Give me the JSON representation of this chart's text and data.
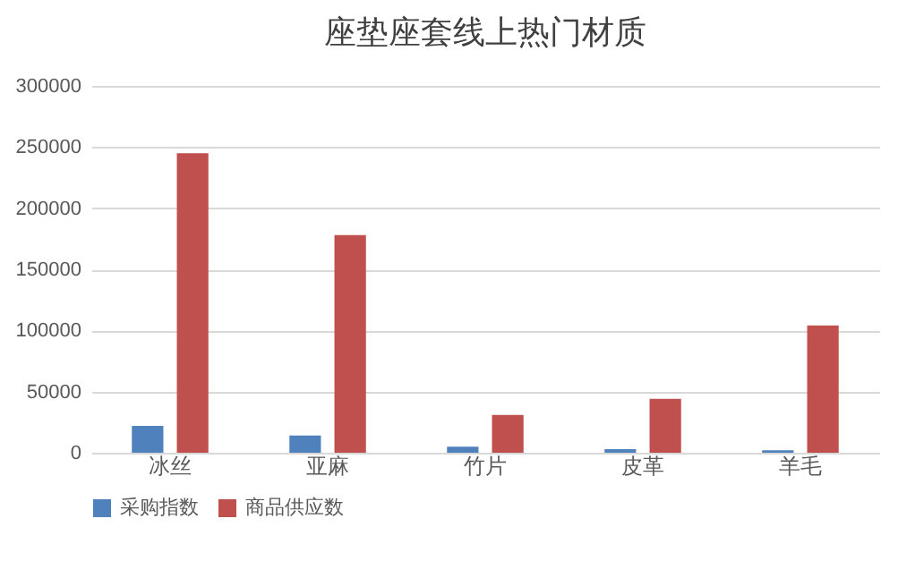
{
  "chart_data": {
    "type": "bar",
    "title": "座垫座套线上热门材质",
    "categories": [
      "冰丝",
      "亚麻",
      "竹片",
      "皮革",
      "羊毛"
    ],
    "series": [
      {
        "name": "采购指数",
        "color": "#4f81bd",
        "values": [
          22000,
          14000,
          5000,
          3000,
          2000
        ]
      },
      {
        "name": "商品供应数",
        "color": "#c0504d",
        "values": [
          245000,
          178000,
          31000,
          44000,
          104000
        ]
      }
    ],
    "ylim": [
      0,
      300000
    ],
    "yticks": [
      0,
      50000,
      100000,
      150000,
      200000,
      250000,
      300000
    ],
    "grid": "y",
    "legend": "bottom"
  }
}
